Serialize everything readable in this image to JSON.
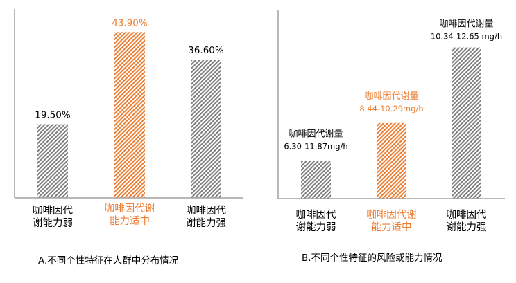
{
  "colors": {
    "gray": "#7f7f7f",
    "orange": "#ed7d31",
    "text": "#000000",
    "axis": "#a0a0a0"
  },
  "chart_data": [
    {
      "type": "bar",
      "title": "A.不同个性特征在人群中分布情况",
      "categories": [
        "咖啡因代谢能力弱",
        "咖啡因代谢能力适中",
        "咖啡因代谢能力强"
      ],
      "category_lines": [
        [
          "咖啡因代",
          "谢能力弱"
        ],
        [
          "咖啡因代谢",
          "能力适中"
        ],
        [
          "咖啡因代",
          "谢能力强"
        ]
      ],
      "values": [
        19.5,
        43.9,
        36.6
      ],
      "data_labels": [
        "19.50%",
        "43.90%",
        "36.60%"
      ],
      "highlight_index": 1,
      "ylim": [
        0,
        50
      ],
      "xlabel": "",
      "ylabel": "",
      "grid": false
    },
    {
      "type": "bar",
      "title": "B.不同个性特征的风险或能力情况",
      "categories": [
        "咖啡因代谢能力弱",
        "咖啡因代谢能力适中",
        "咖啡因代谢能力强"
      ],
      "category_lines": [
        [
          "咖啡因代",
          "谢能力弱"
        ],
        [
          "咖啡因代谢",
          "能力适中"
        ],
        [
          "咖啡因代",
          "谢能力强"
        ]
      ],
      "values": [
        1,
        2,
        4
      ],
      "data_labels": [
        [
          "咖啡因代谢量",
          "6.30-11.87mg/h"
        ],
        [
          "咖啡因代谢量",
          "8.44-10.29mg/h"
        ],
        [
          "咖啡因代谢量",
          "10.34-12.65 mg/h"
        ]
      ],
      "highlight_index": 1,
      "ylim": [
        0,
        5
      ],
      "xlabel": "",
      "ylabel": "",
      "grid": false
    }
  ]
}
